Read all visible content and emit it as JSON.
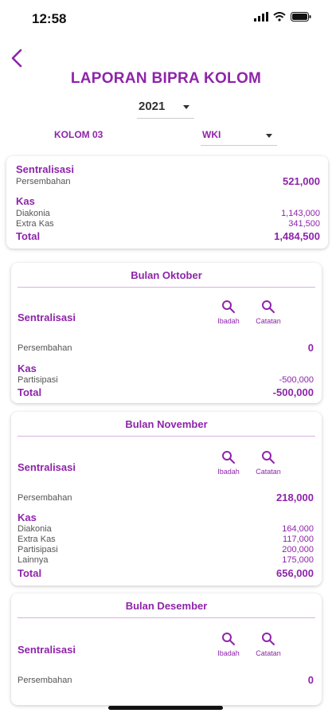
{
  "status": {
    "time": "12:58"
  },
  "header": {
    "title": "LAPORAN BIPRA KOLOM"
  },
  "filters": {
    "year": "2021",
    "kolom": "KOLOM 03",
    "wil": "WKI"
  },
  "summary": {
    "sentralisasi_label": "Sentralisasi",
    "persembahan_label": "Persembahan",
    "persembahan_value": "521,000",
    "kas_label": "Kas",
    "diakonia_label": "Diakonia",
    "diakonia_value": "1,143,000",
    "extra_label": "Extra Kas",
    "extra_value": "341,500",
    "total_label": "Total",
    "total_value": "1,484,500"
  },
  "months": [
    {
      "title": "Bulan Oktober",
      "sentralisasi_label": "Sentralisasi",
      "ibadah_label": "Ibadah",
      "catatan_label": "Catatan",
      "persembahan_label": "Persembahan",
      "persembahan_value": "0",
      "kas_label": "Kas",
      "items": [
        {
          "label": "Partisipasi",
          "value": "-500,000"
        }
      ],
      "total_label": "Total",
      "total_value": "-500,000"
    },
    {
      "title": "Bulan November",
      "sentralisasi_label": "Sentralisasi",
      "ibadah_label": "Ibadah",
      "catatan_label": "Catatan",
      "persembahan_label": "Persembahan",
      "persembahan_value": "218,000",
      "kas_label": "Kas",
      "items": [
        {
          "label": "Diakonia",
          "value": "164,000"
        },
        {
          "label": "Extra Kas",
          "value": "117,000"
        },
        {
          "label": "Partisipasi",
          "value": "200,000"
        },
        {
          "label": "Lainnya",
          "value": "175,000"
        }
      ],
      "total_label": "Total",
      "total_value": "656,000"
    },
    {
      "title": "Bulan Desember",
      "sentralisasi_label": "Sentralisasi",
      "ibadah_label": "Ibadah",
      "catatan_label": "Catatan",
      "persembahan_label": "Persembahan",
      "persembahan_value": "0"
    }
  ],
  "colors": {
    "accent": "#8e24aa",
    "divider": "#d6b3df"
  }
}
